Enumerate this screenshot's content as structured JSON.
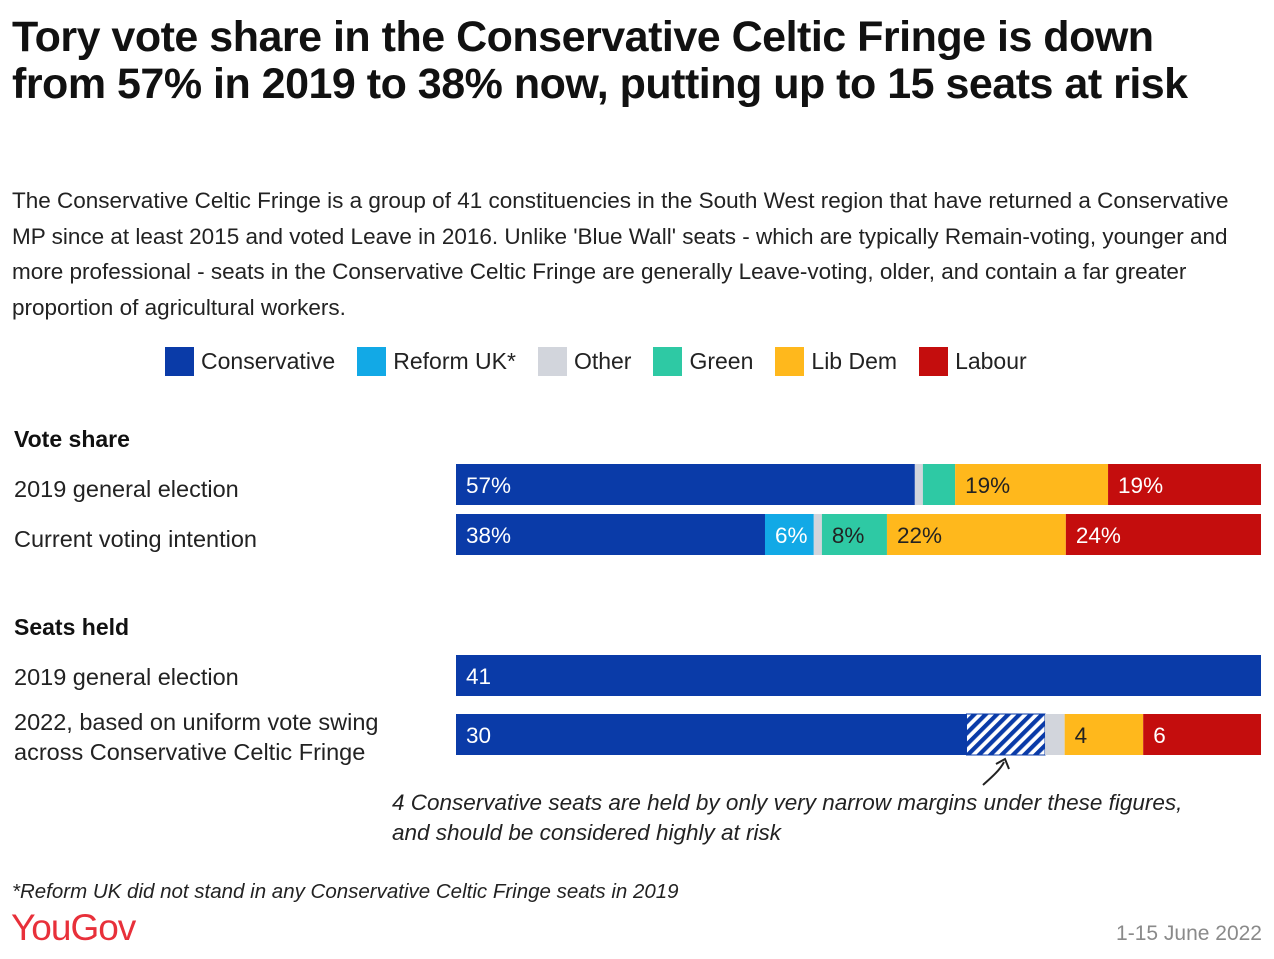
{
  "title": "Tory vote share in the Conservative Celtic Fringe is down from 57% in 2019 to 38% now, putting up to 15 seats at risk",
  "subtitle": "The Conservative Celtic Fringe is a group of 41 constituencies in the South West region that have returned a Conservative MP since at least 2015 and voted Leave in 2016. Unlike 'Blue Wall' seats - which are typically Remain-voting, younger and more professional - seats in the Conservative Celtic Fringe are generally Leave-voting, older, and contain a far greater proportion of agricultural workers.",
  "legend": [
    {
      "label": "Conservative",
      "color": "#0a3ba8"
    },
    {
      "label": "Reform UK*",
      "color": "#12a9e6"
    },
    {
      "label": "Other",
      "color": "#d2d5dc"
    },
    {
      "label": "Green",
      "color": "#2ec9a4"
    },
    {
      "label": "Lib Dem",
      "color": "#ffb81c"
    },
    {
      "label": "Labour",
      "color": "#c40d0d"
    }
  ],
  "sections": {
    "vote_share": "Vote share",
    "seats_held": "Seats held"
  },
  "row_labels": {
    "vote_2019": "2019 general election",
    "vote_current": "Current voting intention",
    "seats_2019": "2019 general election",
    "seats_2022": "2022, based on uniform vote swing across Conservative Celtic Fringe"
  },
  "chart_data": [
    {
      "type": "bar",
      "orientation": "horizontal-stacked",
      "title": "Vote share",
      "categories": [
        "2019 general election",
        "Current voting intention"
      ],
      "series": [
        {
          "name": "Conservative",
          "values": [
            57,
            38
          ],
          "labels": [
            "57%",
            "38%"
          ]
        },
        {
          "name": "Reform UK*",
          "values": [
            0,
            6
          ],
          "labels": [
            "",
            "6%"
          ]
        },
        {
          "name": "Other",
          "values": [
            1,
            1
          ],
          "labels": [
            "",
            ""
          ]
        },
        {
          "name": "Green",
          "values": [
            4,
            8
          ],
          "labels": [
            "",
            "8%"
          ]
        },
        {
          "name": "Lib Dem",
          "values": [
            19,
            22
          ],
          "labels": [
            "19%",
            "22%"
          ]
        },
        {
          "name": "Labour",
          "values": [
            19,
            24
          ],
          "labels": [
            "19%",
            "24%"
          ]
        }
      ]
    },
    {
      "type": "bar",
      "orientation": "horizontal-stacked",
      "title": "Seats held",
      "categories": [
        "2019 general election",
        "2022, based on uniform vote swing across Conservative Celtic Fringe"
      ],
      "series": [
        {
          "name": "Conservative",
          "values": [
            41,
            26
          ],
          "labels": [
            "41",
            "30"
          ]
        },
        {
          "name": "Conservative (highly at risk)",
          "values": [
            0,
            4
          ],
          "labels": [
            "",
            ""
          ],
          "pattern": "hatched"
        },
        {
          "name": "Other",
          "values": [
            0,
            1
          ],
          "labels": [
            "",
            ""
          ]
        },
        {
          "name": "Lib Dem",
          "values": [
            0,
            4
          ],
          "labels": [
            "",
            "4"
          ]
        },
        {
          "name": "Labour",
          "values": [
            0,
            6
          ],
          "labels": [
            "",
            "6"
          ]
        }
      ]
    }
  ],
  "annotation": "4 Conservative seats are held by only very narrow margins under these figures, and should be considered highly at risk",
  "footnote": "*Reform UK did not stand in any Conservative Celtic Fringe seats in 2019",
  "brand": "YouGov",
  "date": "1-15 June 2022"
}
